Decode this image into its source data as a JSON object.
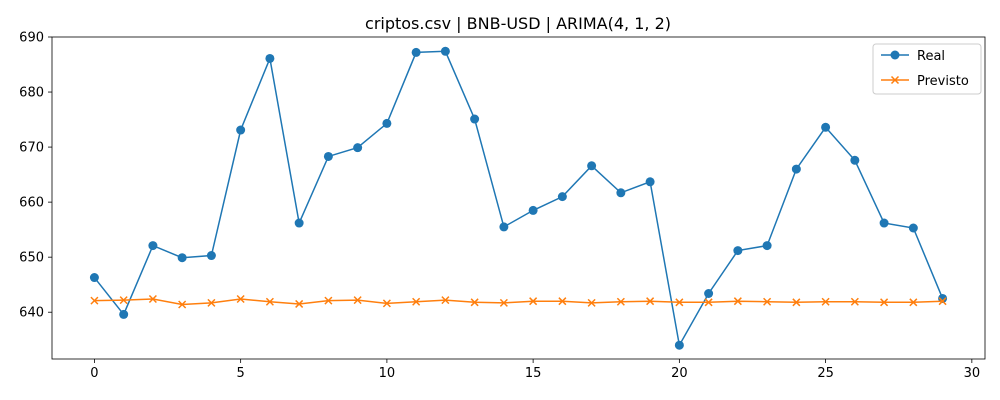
{
  "chart_data": {
    "type": "line",
    "title": "criptos.csv | BNB-USD | ARIMA(4, 1, 2)",
    "xlabel": "",
    "ylabel": "",
    "xlim": [
      -1.45,
      30.45
    ],
    "ylim": [
      631.5,
      690
    ],
    "x_ticks": [
      0,
      5,
      10,
      15,
      20,
      25,
      30
    ],
    "y_ticks": [
      640,
      650,
      660,
      670,
      680,
      690
    ],
    "grid": false,
    "legend_position": "top-right",
    "x": [
      0,
      1,
      2,
      3,
      4,
      5,
      6,
      7,
      8,
      9,
      10,
      11,
      12,
      13,
      14,
      15,
      16,
      17,
      18,
      19,
      20,
      21,
      22,
      23,
      24,
      25,
      26,
      27,
      28,
      29
    ],
    "series": [
      {
        "name": "Real",
        "color": "#1f77b4",
        "marker": "circle",
        "values": [
          646.3,
          639.6,
          652.1,
          649.9,
          650.3,
          673.1,
          686.1,
          656.2,
          668.3,
          669.9,
          674.3,
          687.2,
          687.4,
          675.1,
          655.5,
          658.5,
          661.0,
          666.6,
          661.7,
          663.7,
          634.0,
          643.4,
          651.2,
          652.1,
          666.0,
          673.6,
          667.6,
          656.2,
          655.3,
          642.5
        ]
      },
      {
        "name": "Previsto",
        "color": "#ff7f0e",
        "marker": "x",
        "values": [
          642.1,
          642.2,
          642.4,
          641.4,
          641.7,
          642.4,
          641.9,
          641.5,
          642.1,
          642.2,
          641.6,
          641.9,
          642.2,
          641.8,
          641.7,
          642.0,
          642.0,
          641.7,
          641.9,
          642.0,
          641.8,
          641.8,
          642.0,
          641.9,
          641.8,
          641.9,
          641.9,
          641.8,
          641.8,
          642.0
        ]
      }
    ]
  }
}
